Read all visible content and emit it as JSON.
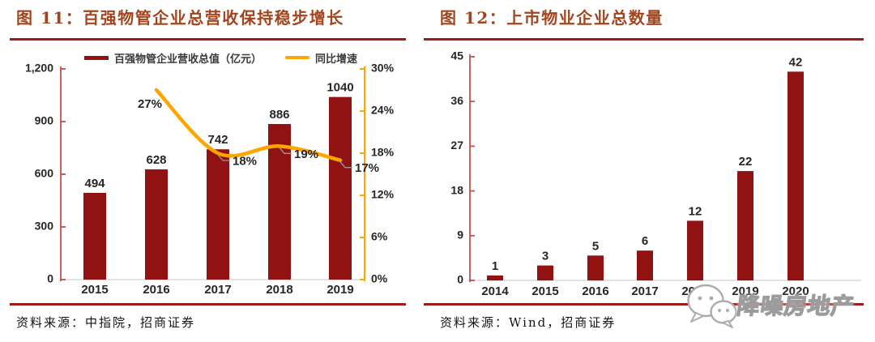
{
  "figures": [
    {
      "label": "图 11：",
      "heading": "百强物管企业总营收保持稳步增长",
      "legend": [
        "百强物管企业营收总值（亿元）",
        "同比增速"
      ],
      "source": "资料来源：中指院，招商证券"
    },
    {
      "label": "图 12：",
      "heading": "上市物业企业总数量",
      "source": "资料来源：Wind，招商证券"
    }
  ],
  "watermark": {
    "text": "降噪房地产",
    "icon": "wechat-icon"
  },
  "colors": {
    "bar": "#901212",
    "line": "#FFA500",
    "value_axis_left": "#C0504D",
    "value_axis_right": "#FFA500",
    "category_axis": "#D9D9D9",
    "title": "#A2451E",
    "rule": "#9B1C1C",
    "label_text": "#262626",
    "leader": "#999999"
  },
  "chart_data": [
    {
      "type": "bar",
      "subtype": "bar+line combo, dual axis",
      "title": "百强物管企业总营收保持稳步增长",
      "categories": [
        "2015",
        "2016",
        "2017",
        "2018",
        "2019"
      ],
      "series": [
        {
          "name": "百强物管企业营收总值（亿元）",
          "kind": "bar",
          "axis": "left",
          "values": [
            494,
            628,
            742,
            886,
            1040
          ],
          "labels": [
            "494",
            "628",
            "742",
            "886",
            "1040"
          ]
        },
        {
          "name": "同比增速",
          "kind": "line",
          "axis": "right",
          "unit": "%",
          "values": [
            null,
            27,
            18,
            19,
            17
          ],
          "labels": [
            null,
            "27%",
            "18%",
            "19%",
            "17%"
          ]
        }
      ],
      "left_axis": {
        "min": 0,
        "max": 1200,
        "ticks": [
          0,
          300,
          600,
          900,
          1200
        ],
        "tick_labels": [
          "0",
          "300",
          "600",
          "900",
          "1,200"
        ]
      },
      "right_axis": {
        "min": 0,
        "max": 30,
        "ticks": [
          0,
          6,
          12,
          18,
          24,
          30
        ],
        "tick_labels": [
          "0%",
          "6%",
          "12%",
          "18%",
          "24%",
          "30%"
        ]
      },
      "legend_position": "top",
      "grid": false
    },
    {
      "type": "bar",
      "title": "上市物业企业总数量",
      "categories": [
        "2014",
        "2015",
        "2016",
        "2017",
        "2018",
        "2019",
        "2020"
      ],
      "values": [
        1,
        3,
        5,
        6,
        12,
        22,
        42
      ],
      "labels": [
        "1",
        "3",
        "5",
        "6",
        "12",
        "22",
        "42"
      ],
      "y_axis": {
        "min": 0,
        "max": 45,
        "ticks": [
          0,
          9,
          18,
          27,
          36,
          45
        ],
        "tick_labels": [
          "0",
          "9",
          "18",
          "27",
          "36",
          "45"
        ]
      },
      "legend_position": "none",
      "grid": false
    }
  ]
}
